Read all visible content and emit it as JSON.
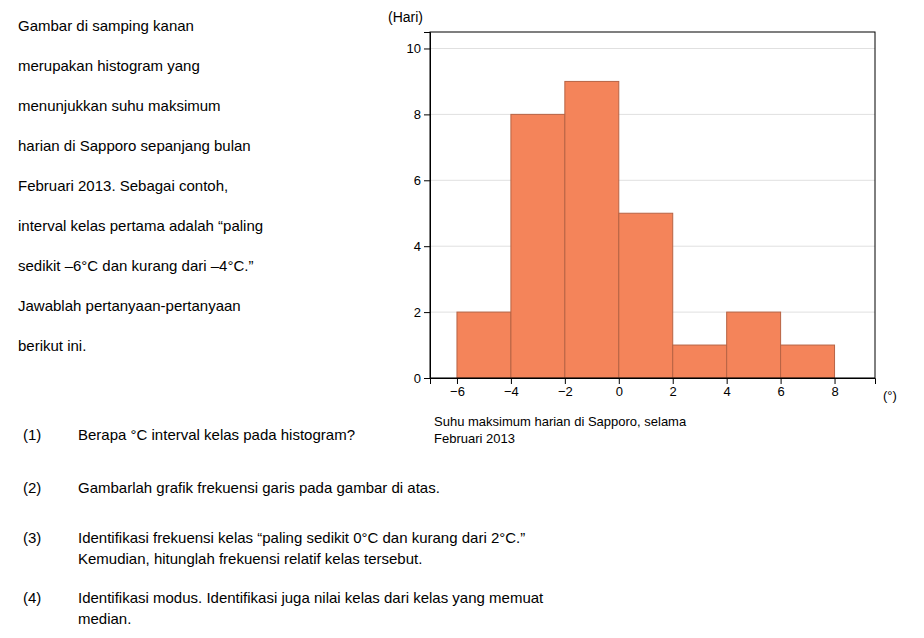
{
  "chart_data": {
    "type": "histogram",
    "bins": [
      -6,
      -4,
      -2,
      0,
      2,
      4,
      6,
      8
    ],
    "values": [
      2,
      8,
      9,
      5,
      1,
      2,
      1
    ],
    "color": "#F4845A",
    "xlim": [
      -7,
      9.5
    ],
    "ylim": [
      0,
      10.5
    ],
    "xticks": [
      {
        "value": -6,
        "label": "−6"
      },
      {
        "value": -4,
        "label": "−4"
      },
      {
        "value": -2,
        "label": "−2"
      },
      0,
      2,
      4,
      6,
      8
    ],
    "yticks": [
      0,
      2,
      4,
      6,
      8,
      10
    ],
    "grid": true,
    "ylabel": "(Hari)",
    "xlabel": "(°)",
    "caption": [
      "Suhu maksimum harian di Sapporo, selama",
      "Februari 2013"
    ],
    "paragraph": [
      "Gambar di samping kanan",
      "merupakan histogram yang",
      "menunjukkan suhu maksimum",
      "harian di Sapporo sepanjang bulan",
      "Februari 2013. Sebagai contoh,",
      "interval kelas pertama adalah “paling",
      "sedikit –6°C dan kurang dari –4°C.”",
      "Jawablah pertanyaan-pertanyaan",
      "berikut ini."
    ],
    "questions": [
      {
        "number": "(1)",
        "text": [
          "Berapa °C interval kelas pada histogram?"
        ]
      },
      {
        "number": "(2)",
        "text": [
          "Gambarlah grafik frekuensi garis pada gambar di atas."
        ]
      },
      {
        "number": "(3)",
        "text": [
          "Identifikasi frekuensi kelas “paling sedikit 0°C dan kurang dari 2°C.”",
          "Kemudian, hitunglah frekuensi relatif kelas tersebut."
        ]
      },
      {
        "number": "(4)",
        "text": [
          "Identifikasi modus. Identifikasi juga nilai kelas dari kelas yang memuat",
          "median."
        ]
      }
    ]
  }
}
